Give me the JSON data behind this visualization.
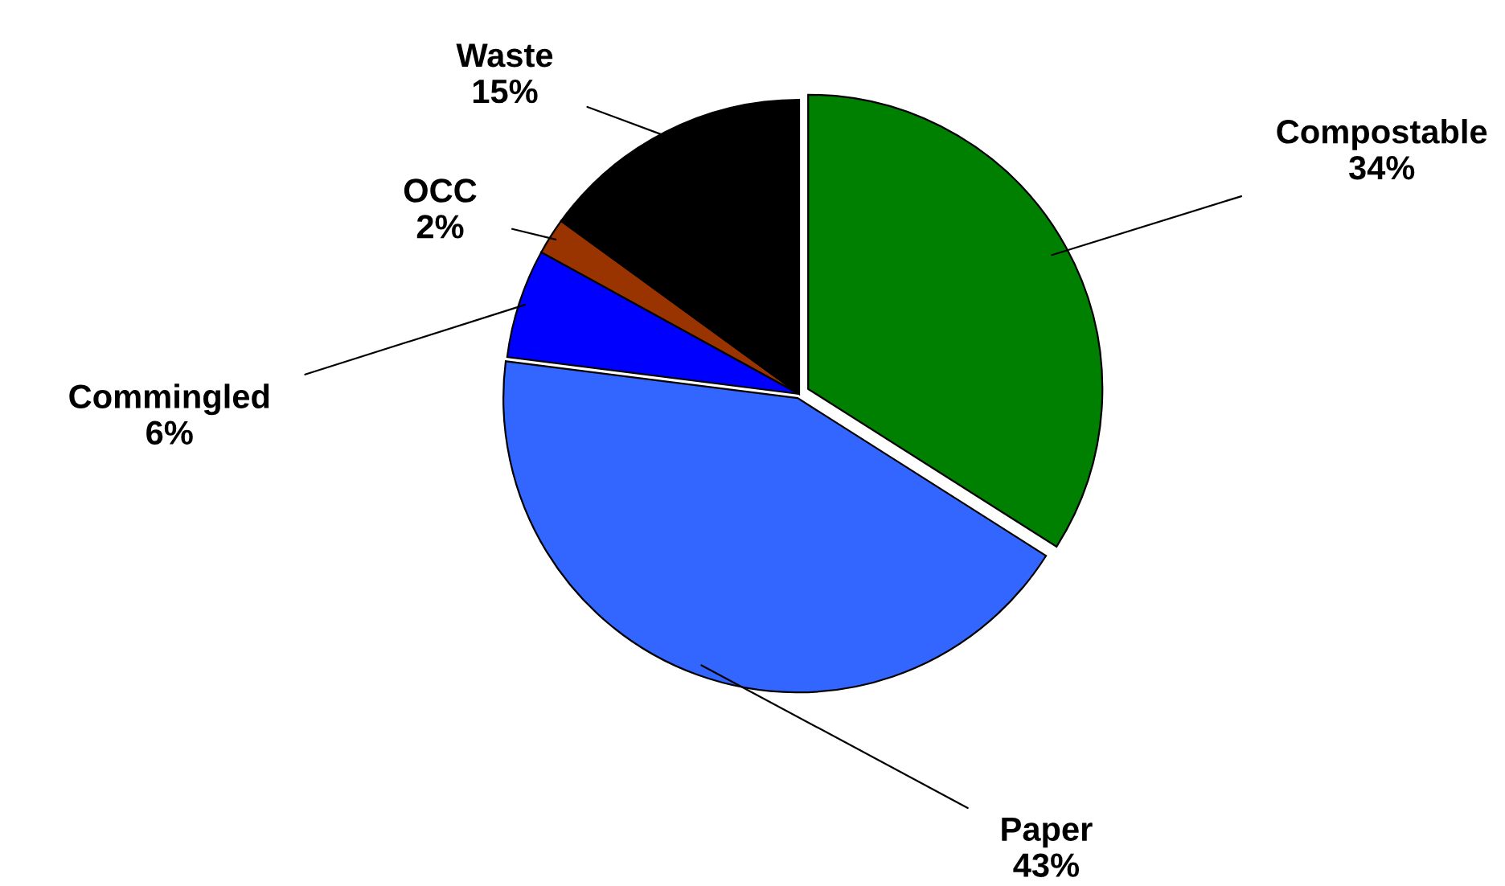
{
  "chart_data": {
    "type": "pie",
    "categories": [
      "Compostable",
      "Paper",
      "Commingled",
      "OCC",
      "Waste"
    ],
    "values": [
      34,
      43,
      6,
      2,
      15
    ],
    "colors": [
      "#008000",
      "#3366ff",
      "#0000ff",
      "#993300",
      "#000000"
    ],
    "value_labels": [
      "34%",
      "43%",
      "6%",
      "2%",
      "15%"
    ]
  }
}
